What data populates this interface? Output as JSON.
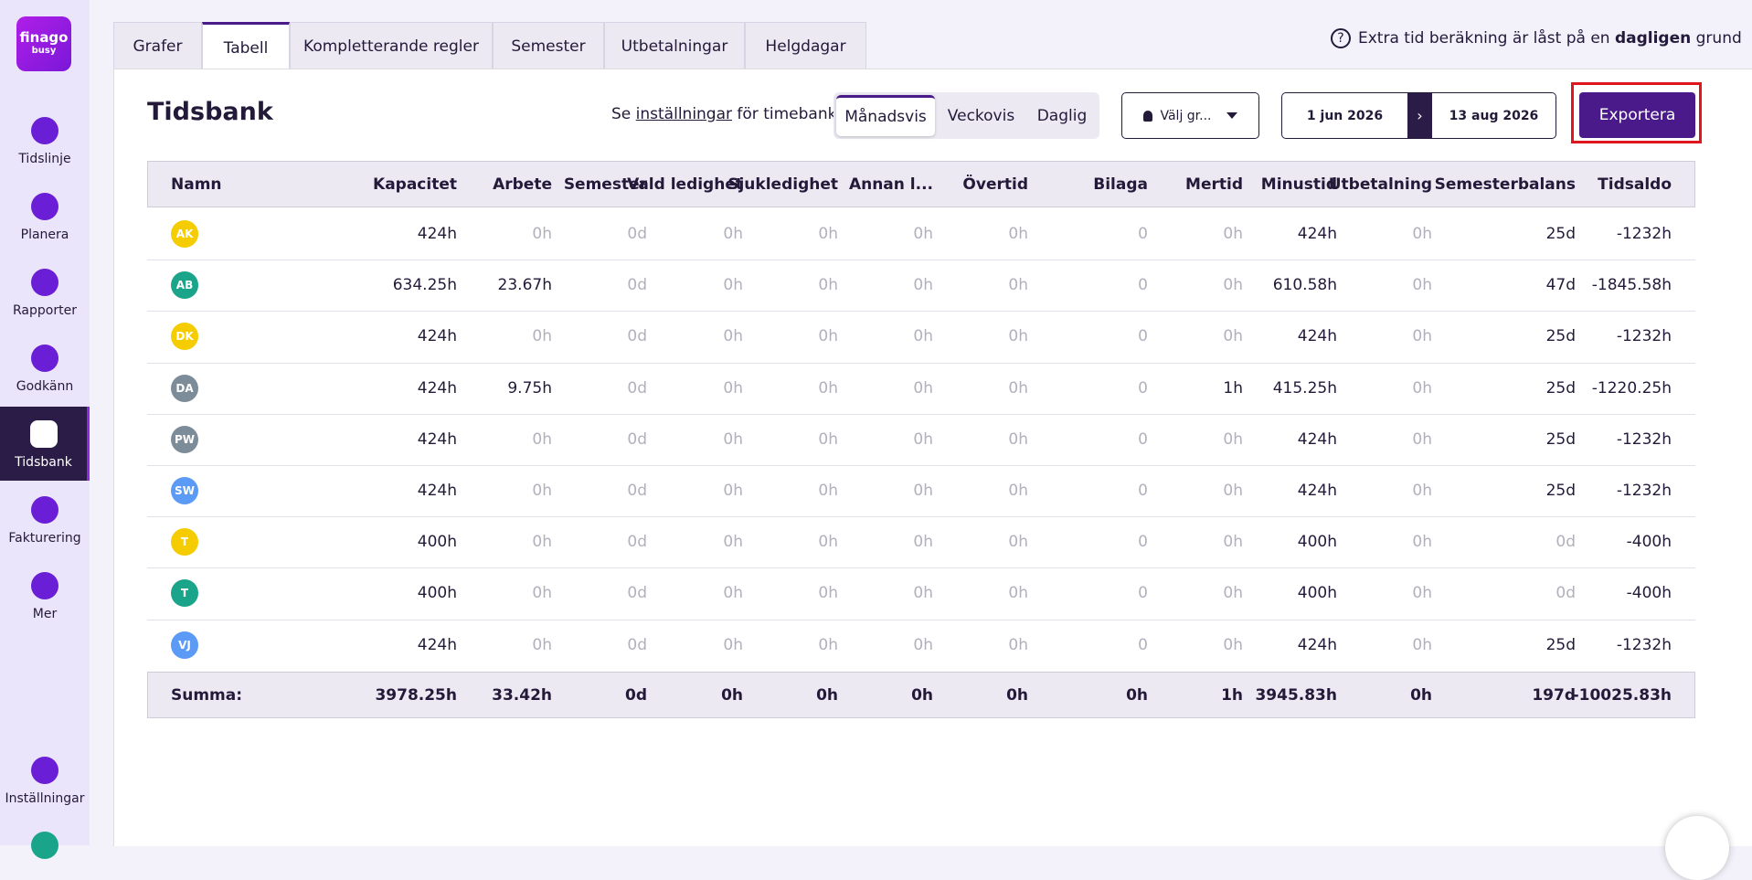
{
  "sidebar": {
    "logo": [
      "finago",
      "busy"
    ],
    "nav": [
      "Tidslinje",
      "Planera",
      "Rapporter",
      "Godkänn",
      "Tidsbank",
      "Fakturering",
      "Mer"
    ],
    "active": 4,
    "settings": "Inställningar"
  },
  "tabs": {
    "items": [
      "Grafer",
      "Tabell",
      "Kompletterande regler",
      "Semester",
      "Utbetalningar",
      "Helgdagar"
    ],
    "active": 1
  },
  "info": {
    "before": "Extra tid beräkning är låst på en ",
    "bold": "dagligen",
    "after": " grund"
  },
  "header": {
    "title": "Tidsbank",
    "settings_link": {
      "before": "Se ",
      "link": "inställningar",
      "after": " för timebank"
    },
    "views": {
      "items": [
        "Månadsvis",
        "Veckovis",
        "Daglig"
      ],
      "active": 0
    },
    "group_select": "Välj gr...",
    "date_from": "1 jun 2026",
    "date_to": "13 aug 2026",
    "export": "Exportera"
  },
  "table": {
    "columns": [
      "Namn",
      "Kapacitet",
      "Arbete",
      "Semester",
      "Vald ledighet",
      "Sjukledighet",
      "Annan l...",
      "Övertid",
      "Bilaga",
      "Mertid",
      "Minustid",
      "Utbetalning",
      "Semesterbalans",
      "Tidsaldo"
    ],
    "rows": [
      {
        "initials": "AK",
        "color": "#f5cc00",
        "cells": [
          "424h",
          "0h",
          "0d",
          "0h",
          "0h",
          "0h",
          "0h",
          "0",
          "0h",
          "424h",
          "0h",
          "25d",
          "-1232h"
        ]
      },
      {
        "initials": "AB",
        "color": "#1aa58a",
        "cells": [
          "634.25h",
          "23.67h",
          "0d",
          "0h",
          "0h",
          "0h",
          "0h",
          "0",
          "0h",
          "610.58h",
          "0h",
          "47d",
          "-1845.58h"
        ]
      },
      {
        "initials": "DK",
        "color": "#f5cc00",
        "cells": [
          "424h",
          "0h",
          "0d",
          "0h",
          "0h",
          "0h",
          "0h",
          "0",
          "0h",
          "424h",
          "0h",
          "25d",
          "-1232h"
        ]
      },
      {
        "initials": "DA",
        "color": "#7d8c99",
        "cells": [
          "424h",
          "9.75h",
          "0d",
          "0h",
          "0h",
          "0h",
          "0h",
          "0",
          "1h",
          "415.25h",
          "0h",
          "25d",
          "-1220.25h"
        ]
      },
      {
        "initials": "PW",
        "color": "#7d8c99",
        "cells": [
          "424h",
          "0h",
          "0d",
          "0h",
          "0h",
          "0h",
          "0h",
          "0",
          "0h",
          "424h",
          "0h",
          "25d",
          "-1232h"
        ]
      },
      {
        "initials": "SW",
        "color": "#5b9af5",
        "cells": [
          "424h",
          "0h",
          "0d",
          "0h",
          "0h",
          "0h",
          "0h",
          "0",
          "0h",
          "424h",
          "0h",
          "25d",
          "-1232h"
        ]
      },
      {
        "initials": "T",
        "color": "#f5cc00",
        "cells": [
          "400h",
          "0h",
          "0d",
          "0h",
          "0h",
          "0h",
          "0h",
          "0",
          "0h",
          "400h",
          "0h",
          "0d",
          "-400h"
        ]
      },
      {
        "initials": "T",
        "color": "#1aa58a",
        "cells": [
          "400h",
          "0h",
          "0d",
          "0h",
          "0h",
          "0h",
          "0h",
          "0",
          "0h",
          "400h",
          "0h",
          "0d",
          "-400h"
        ]
      },
      {
        "initials": "VJ",
        "color": "#5b9af5",
        "cells": [
          "424h",
          "0h",
          "0d",
          "0h",
          "0h",
          "0h",
          "0h",
          "0",
          "0h",
          "424h",
          "0h",
          "25d",
          "-1232h"
        ]
      }
    ],
    "summary": {
      "label": "Summa:",
      "cells": [
        "3978.25h",
        "33.42h",
        "0d",
        "0h",
        "0h",
        "0h",
        "0h",
        "0h",
        "1h",
        "3945.83h",
        "0h",
        "197d",
        "-10025.83h"
      ]
    }
  }
}
